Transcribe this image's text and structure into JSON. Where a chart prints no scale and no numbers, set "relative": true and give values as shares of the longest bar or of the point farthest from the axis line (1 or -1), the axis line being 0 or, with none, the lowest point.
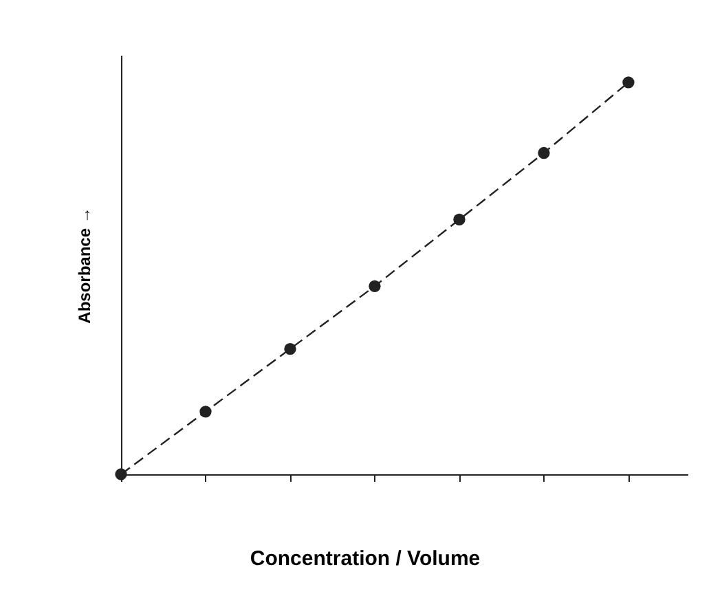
{
  "chart_data": {
    "type": "line",
    "relative": true,
    "xlabel": "Concentration / Volume",
    "ylabel": "Absorbance →",
    "categories": [
      null,
      null,
      null,
      null,
      null,
      null,
      null
    ],
    "series": [
      {
        "color": "#222222",
        "values": [
          0,
          0.16,
          0.32,
          0.48,
          0.65,
          0.82,
          1.0
        ]
      }
    ],
    "line_style": "dashed",
    "marker": "circle",
    "grid": false
  }
}
